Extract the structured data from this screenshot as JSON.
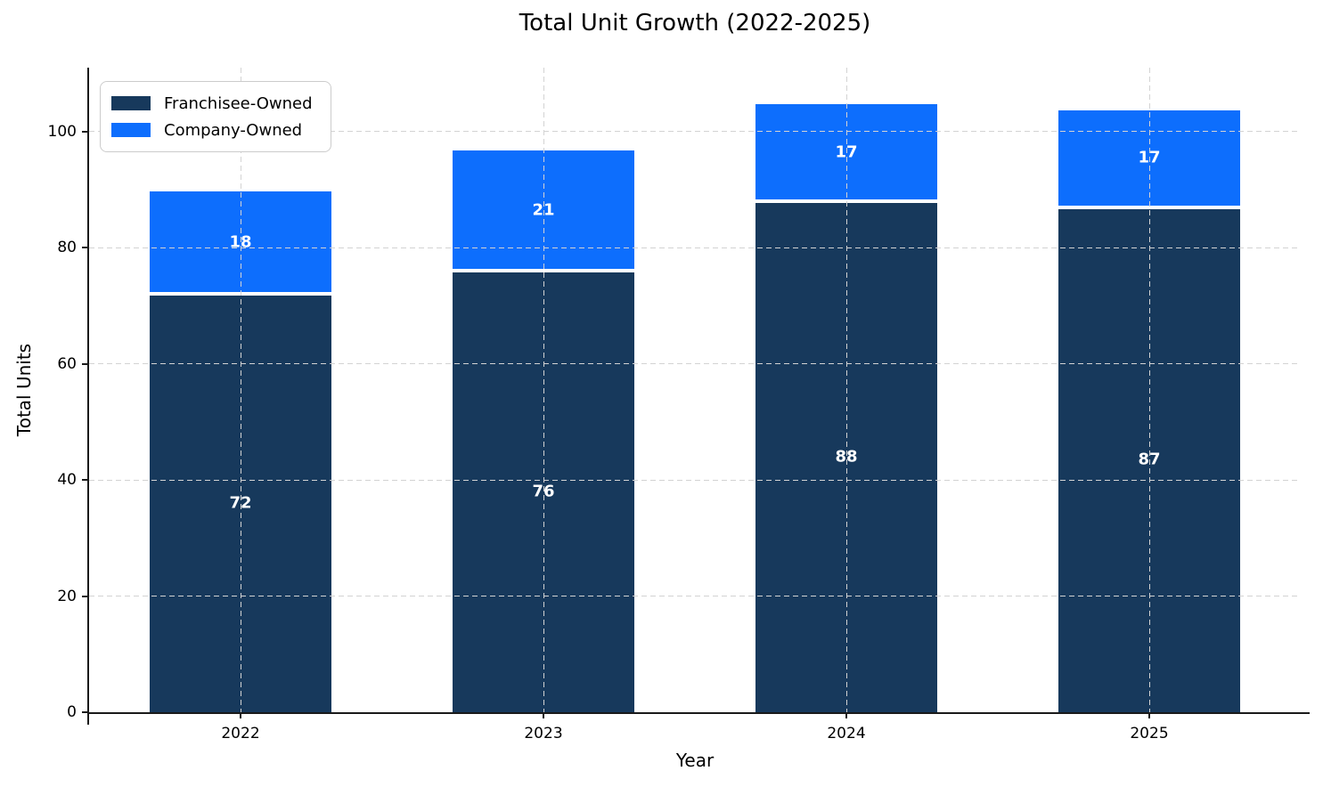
{
  "chart_data": {
    "type": "bar",
    "stacked": true,
    "title": "Total Unit Growth (2022-2025)",
    "xlabel": "Year",
    "ylabel": "Total Units",
    "categories": [
      "2022",
      "2023",
      "2024",
      "2025"
    ],
    "series": [
      {
        "name": "Franchisee-Owned",
        "color": "#17395c",
        "values": [
          72,
          76,
          88,
          87
        ]
      },
      {
        "name": "Company-Owned",
        "color": "#0d6efd",
        "values": [
          18,
          21,
          17,
          17
        ]
      }
    ],
    "yticks": [
      0,
      20,
      40,
      60,
      80,
      100
    ],
    "ylim": [
      0,
      111
    ],
    "bar_width_fraction": 0.6,
    "grid": true,
    "grid_style": "dashed",
    "legend_position": "upper left",
    "bar_label_color": "#ffffff",
    "colors": {
      "axis": "#1a1a1a",
      "grid": "#d3d3d3",
      "background": "#ffffff"
    }
  }
}
